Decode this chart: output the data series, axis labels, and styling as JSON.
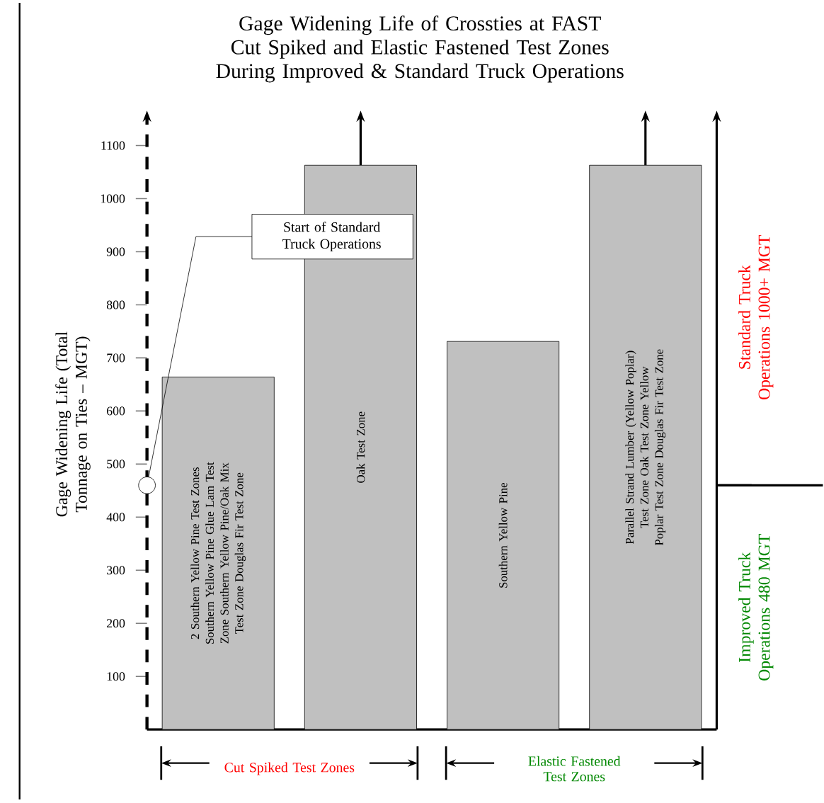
{
  "chart_data": {
    "type": "bar",
    "title": "Gage Widening Life of Crossties at FAST Cut Spiked and Elastic Fastened Test Zones During Improved & Standard Truck Operations",
    "ylabel": "Gage Widening Life (Total Tonnage on Ties – MGT)",
    "categories": [
      "2 Southern Yellow Pine Test Zones Southern Yellow Pine Glue Lam Test Zone Southern Yellow Pine/Oak Mix Test Zone Douglas Fir Test Zone",
      "Oak Test Zone",
      "Southern Yellow Pine",
      "Parallel Strand Lumber (Yellow Poplar) Test Zone Oak Test Zone Yellow Poplar Test Zone Douglas Fir Test Zone"
    ],
    "values": [
      664,
      1063,
      731,
      1063
    ],
    "color": "#c0c0c0",
    "ylim": [
      0,
      1150
    ],
    "yticks": [
      100,
      200,
      300,
      400,
      500,
      600,
      700,
      800,
      900,
      1000,
      1100
    ],
    "annotations": [
      "Start of Standard Truck Operations",
      "Standard Truck Operations 1000+ MGT",
      "Improved Truck Operations 480 MGT",
      "Cut Spiked Test Zones",
      "Elastic Fastened Test Zones"
    ]
  }
}
